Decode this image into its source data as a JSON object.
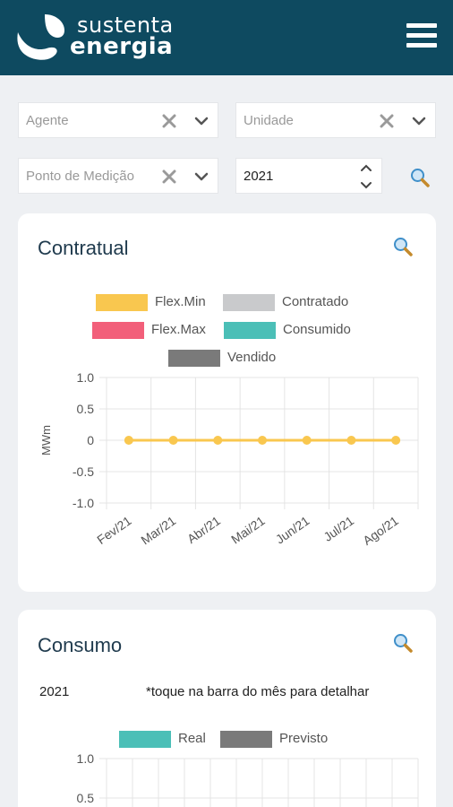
{
  "header": {
    "brand_line1": "sustenta",
    "brand_line2": "energia",
    "menu_icon": "hamburger-menu-icon",
    "colors": {
      "bar": "#0e4a60"
    }
  },
  "filters": {
    "agente_placeholder": "Agente",
    "unidade_placeholder": "Unidade",
    "ponto_placeholder": "Ponto de Medição",
    "year_value": "2021",
    "clear_icon": "close-icon",
    "dropdown_icon": "chevron-down-icon",
    "search_icon": "search-icon"
  },
  "contratual": {
    "title": "Contratual",
    "legend": [
      {
        "label": "Flex.Min",
        "color": "#f9c74f"
      },
      {
        "label": "Contratado",
        "color": "#c9cacc"
      },
      {
        "label": "Flex.Max",
        "color": "#f25f7a"
      },
      {
        "label": "Consumido",
        "color": "#4bbfb7"
      },
      {
        "label": "Vendido",
        "color": "#7a7a7a"
      }
    ]
  },
  "consumo": {
    "title": "Consumo",
    "year": "2021",
    "hint": "*toque na barra do mês para detalhar",
    "legend": [
      {
        "label": "Real",
        "color": "#4bbfb7"
      },
      {
        "label": "Previsto",
        "color": "#7a7a7a"
      }
    ]
  },
  "chart_data": [
    {
      "type": "line",
      "title": "Contratual",
      "xlabel": "",
      "ylabel": "MWm",
      "categories": [
        "Fev/21",
        "Mar/21",
        "Abr/21",
        "Mai/21",
        "Jun/21",
        "Jul/21",
        "Ago/21"
      ],
      "series": [
        {
          "name": "Flex.Min",
          "color": "#f9c74f",
          "values": [
            0,
            0,
            0,
            0,
            0,
            0,
            0
          ]
        }
      ],
      "ylim": [
        -1.0,
        1.0
      ],
      "yticks": [
        "1.0",
        "0.5",
        "0",
        "-0.5",
        "-1.0"
      ],
      "grid": true,
      "legend_placement": "top"
    },
    {
      "type": "bar",
      "title": "Consumo",
      "ylim": [
        0,
        1.0
      ],
      "yticks": [
        "1.0",
        "0.5"
      ],
      "series": [
        {
          "name": "Real",
          "color": "#4bbfb7",
          "values": []
        },
        {
          "name": "Previsto",
          "color": "#7a7a7a",
          "values": []
        }
      ],
      "grid": true,
      "legend_placement": "top"
    }
  ]
}
